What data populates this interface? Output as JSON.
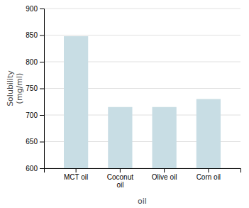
{
  "chart_data": {
    "type": "bar",
    "categories": [
      "MCT oil",
      "Coconut\noil",
      "Olive oil",
      "Corn oil"
    ],
    "values": [
      848,
      715,
      715,
      730
    ],
    "color": "#c8dde4",
    "xlabel": "oil",
    "ylabel": "Solubility\n(mg/ml)",
    "ylim": [
      600,
      900
    ],
    "yticks": [
      600,
      650,
      700,
      750,
      800,
      850,
      900
    ],
    "grid": true
  }
}
